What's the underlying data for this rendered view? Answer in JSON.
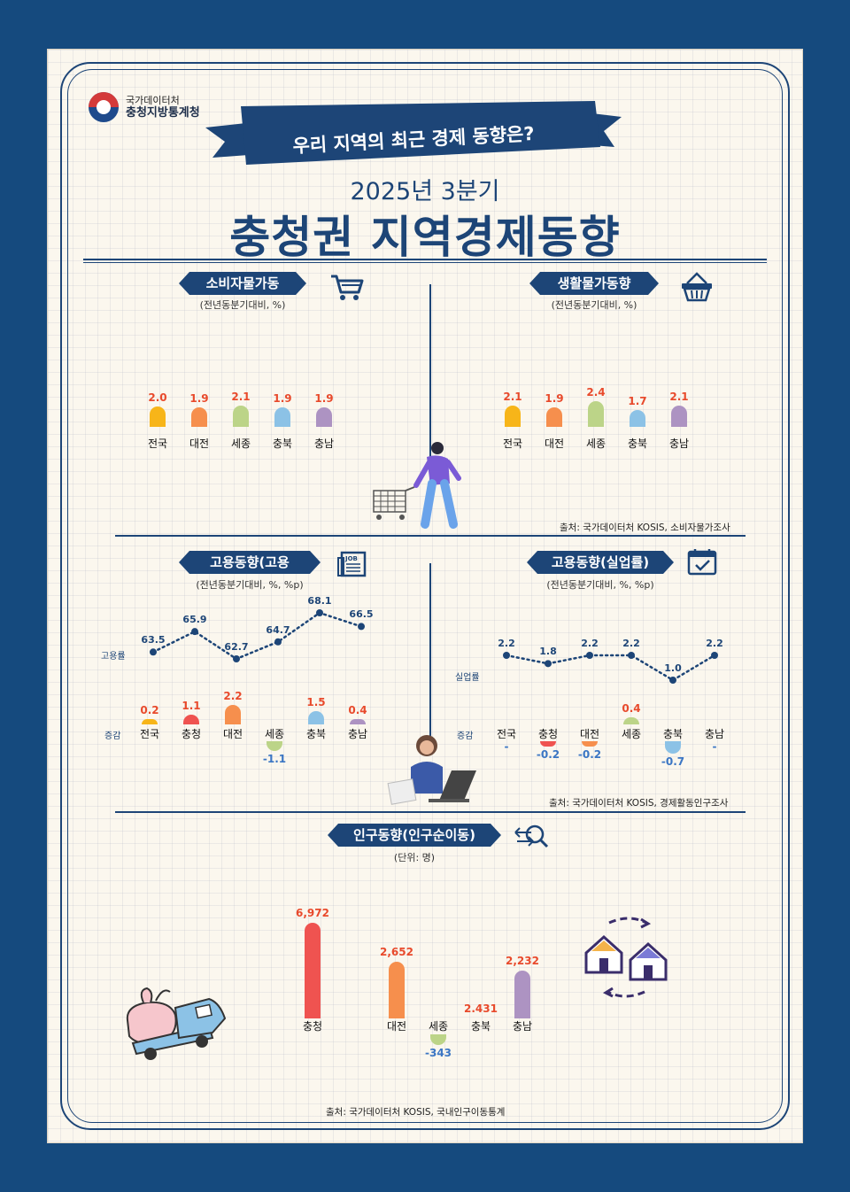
{
  "header": {
    "agency_line1": "국가데이터처",
    "agency_line2": "충청지방통계청",
    "ribbon": "우리 지역의 최근 경제 동향은?",
    "subtitle": "2025년 3분기",
    "title": "충청권 지역경제동향"
  },
  "colors": {
    "navy": "#1d4577",
    "red_value": "#e84a2c",
    "blue_value": "#3b76c4",
    "yellow": "#f7b519",
    "orange": "#f68f4d",
    "green": "#bcd488",
    "lightblue": "#8cc2e6",
    "purple": "#ad93c2",
    "coral": "#ef5350"
  },
  "cpi": {
    "tag": "소비자물가동향",
    "unit": "(전년동분기대비, %)",
    "icon": "shopping-cart-icon",
    "regions": [
      "전국",
      "대전",
      "세종",
      "충북",
      "충남"
    ],
    "values": [
      "2.0",
      "1.9",
      "2.1",
      "1.9",
      "1.9"
    ]
  },
  "living": {
    "tag": "생활물가동향",
    "unit": "(전년동분기대비, %)",
    "icon": "basket-icon",
    "regions": [
      "전국",
      "대전",
      "세종",
      "충북",
      "충남"
    ],
    "values": [
      "2.1",
      "1.9",
      "2.4",
      "1.7",
      "2.1"
    ]
  },
  "price_source": "출처: 국가데이터처 KOSIS, 소비자물가조사",
  "employment": {
    "tag": "고용동향(고용률)",
    "unit": "(전년동분기대비, %, %p)",
    "icon": "job-newspaper-icon",
    "rate_label": "고용률",
    "change_label": "증감",
    "regions": [
      "전국",
      "충청",
      "대전",
      "세종",
      "충북",
      "충남"
    ],
    "rates": [
      "63.5",
      "65.9",
      "62.7",
      "64.7",
      "68.1",
      "66.5"
    ],
    "changes": [
      "0.2",
      "1.1",
      "2.2",
      "-1.1",
      "1.5",
      "0.4"
    ]
  },
  "unemployment": {
    "tag": "고용동향(실업률)",
    "unit": "(전년동분기대비, %, %p)",
    "icon": "calendar-check-icon",
    "rate_label": "실업률",
    "change_label": "증감",
    "regions": [
      "전국",
      "충청",
      "대전",
      "세종",
      "충북",
      "충남"
    ],
    "rates": [
      "2.2",
      "1.8",
      "2.2",
      "2.2",
      "1.0",
      "2.2"
    ],
    "changes": [
      "-",
      "-0.2",
      "-0.2",
      "0.4",
      "-0.7",
      "-"
    ]
  },
  "employment_source": "출처: 국가데이터처 KOSIS, 경제활동인구조사",
  "population": {
    "tag": "인구동향(인구순이동)",
    "unit": "(단위: 명)",
    "icon": "migration-search-icon",
    "regions": [
      "충청",
      "대전",
      "세종",
      "충북",
      "충남"
    ],
    "values": [
      "6,972",
      "2,652",
      "-343",
      "2.431",
      "2,232"
    ]
  },
  "population_source": "출처: 국가데이터처 KOSIS, 국내인구이동통계"
}
